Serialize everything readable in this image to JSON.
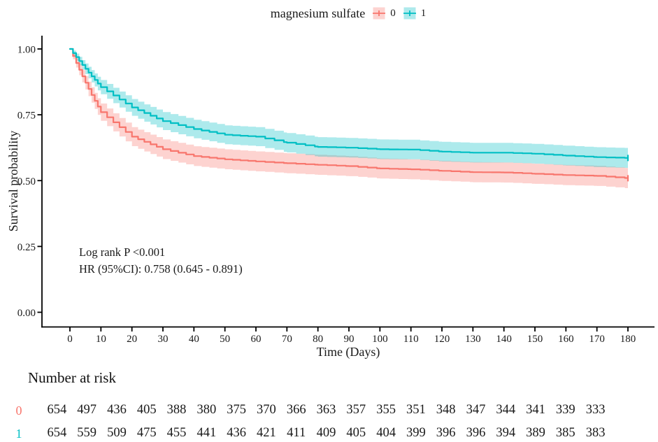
{
  "chart_data": {
    "type": "line",
    "subtype": "kaplan_meier_survival_with_ci",
    "title": "",
    "legend": {
      "title": "magnesium sulfate",
      "position": "top"
    },
    "xlabel": "Time (Days)",
    "ylabel": "Survival probability",
    "xlim": [
      0,
      180
    ],
    "ylim": [
      0,
      1
    ],
    "grid": false,
    "xticks": [
      0,
      10,
      20,
      30,
      40,
      50,
      60,
      70,
      80,
      90,
      100,
      110,
      120,
      130,
      140,
      150,
      160,
      170,
      180
    ],
    "yticks": [
      {
        "value": 0.0,
        "label": "0.00"
      },
      {
        "value": 0.25,
        "label": "0.25"
      },
      {
        "value": 0.5,
        "label": "0.50"
      },
      {
        "value": 0.75,
        "label": "0.75"
      },
      {
        "value": 1.0,
        "label": "1.00"
      }
    ],
    "annotations": [
      "Log rank P <0.001",
      "HR (95%CI): 0.758 (0.645 - 0.891)"
    ],
    "series": [
      {
        "name": "0",
        "color": "#F8766D",
        "fill": "rgba(248,118,109,0.32)",
        "n": 654,
        "x": [
          0,
          10,
          20,
          30,
          40,
          50,
          60,
          70,
          80,
          90,
          100,
          110,
          120,
          130,
          140,
          150,
          160,
          170,
          180
        ],
        "y": [
          1.0,
          0.76,
          0.667,
          0.619,
          0.593,
          0.581,
          0.573,
          0.566,
          0.56,
          0.555,
          0.546,
          0.543,
          0.537,
          0.532,
          0.531,
          0.526,
          0.521,
          0.518,
          0.509
        ],
        "censor_x": [
          180
        ]
      },
      {
        "name": "1",
        "color": "#00BFC4",
        "fill": "rgba(0,191,196,0.32)",
        "n": 654,
        "x": [
          0,
          10,
          20,
          30,
          40,
          50,
          60,
          70,
          80,
          90,
          100,
          110,
          120,
          130,
          140,
          150,
          160,
          170,
          180
        ],
        "y": [
          1.0,
          0.855,
          0.778,
          0.726,
          0.696,
          0.674,
          0.667,
          0.644,
          0.628,
          0.625,
          0.619,
          0.618,
          0.61,
          0.606,
          0.606,
          0.602,
          0.595,
          0.589,
          0.586
        ],
        "censor_x": [
          180
        ]
      }
    ],
    "risk_table": {
      "title": "Number at risk",
      "time_points": [
        0,
        10,
        20,
        30,
        40,
        50,
        60,
        70,
        80,
        90,
        100,
        110,
        120,
        130,
        140,
        150,
        160,
        170,
        180
      ],
      "rows": [
        {
          "label": "0",
          "color": "#F8766D",
          "values": [
            654,
            497,
            436,
            405,
            388,
            380,
            375,
            370,
            366,
            363,
            357,
            355,
            351,
            348,
            347,
            344,
            341,
            339,
            333
          ]
        },
        {
          "label": "1",
          "color": "#00BFC4",
          "values": [
            654,
            559,
            509,
            475,
            455,
            441,
            436,
            421,
            411,
            409,
            405,
            404,
            399,
            396,
            396,
            394,
            389,
            385,
            383
          ]
        }
      ]
    }
  }
}
